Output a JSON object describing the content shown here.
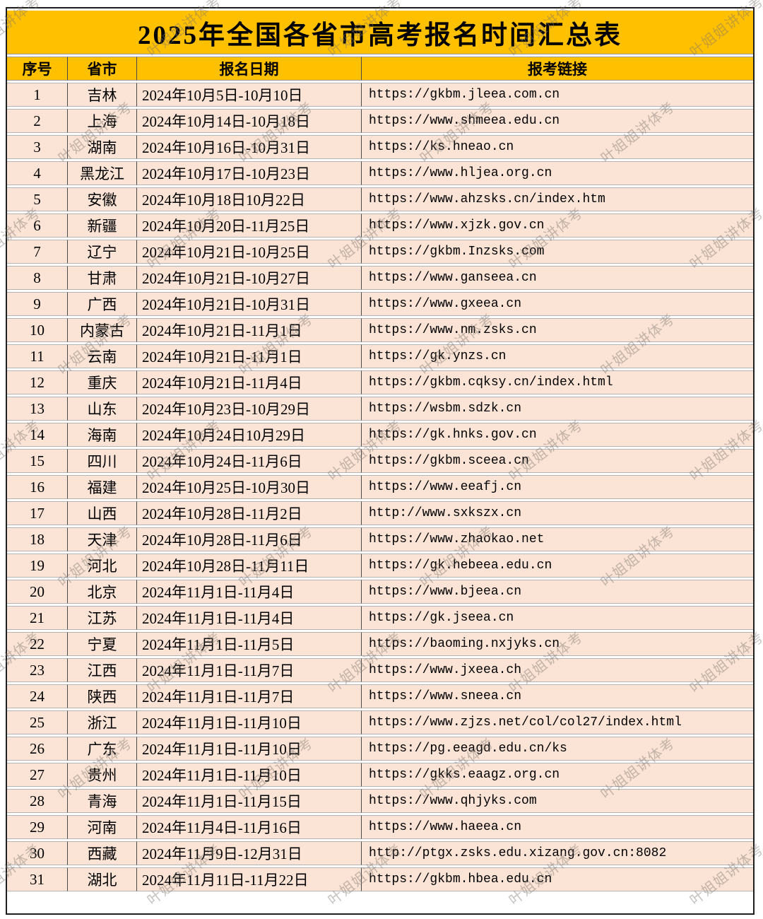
{
  "title": "2025年全国各省市高考报名时间汇总表",
  "watermark": {
    "text": "叶姐姐讲体考"
  },
  "colors": {
    "header_bg": "#FFC000",
    "row_bg": "#FBE4D5",
    "outer_border": "#1F1F1F",
    "column_line": "#4A4A4A",
    "row_line": "#B3B3B3",
    "text": "#000000",
    "watermark": "#80786F"
  },
  "table": {
    "headers": [
      "序号",
      "省市",
      "报名日期",
      "报考链接"
    ],
    "rows": [
      {
        "no": "1",
        "province": "吉林",
        "date": "2024年10月5日-10月10日",
        "link": "https://gkbm.jleea.com.cn"
      },
      {
        "no": "2",
        "province": "上海",
        "date": "2024年10月14日-10月18日",
        "link": "https://www.shmeea.edu.cn"
      },
      {
        "no": "3",
        "province": "湖南",
        "date": "2024年10月16日-10月31日",
        "link": "https://ks.hneao.cn"
      },
      {
        "no": "4",
        "province": "黑龙江",
        "date": "2024年10月17日-10月23日",
        "link": "https://www.hljea.org.cn"
      },
      {
        "no": "5",
        "province": "安徽",
        "date": "2024年10月18日10月22日",
        "link": "https://www.ahzsks.cn/index.htm"
      },
      {
        "no": "6",
        "province": "新疆",
        "date": "2024年10月20日-11月25日",
        "link": "https://www.xjzk.gov.cn"
      },
      {
        "no": "7",
        "province": "辽宁",
        "date": "2024年10月21日-10月25日",
        "link": "https://gkbm.Inzsks.com"
      },
      {
        "no": "8",
        "province": "甘肃",
        "date": "2024年10月21日-10月27日",
        "link": "https://www.ganseea.cn"
      },
      {
        "no": "9",
        "province": "广西",
        "date": "2024年10月21日-10月31日",
        "link": "https://www.gxeea.cn"
      },
      {
        "no": "10",
        "province": "内蒙古",
        "date": "2024年10月21日-11月1日",
        "link": "https://www.nm.zsks.cn"
      },
      {
        "no": "11",
        "province": "云南",
        "date": "2024年10月21日-11月1日",
        "link": "https://gk.ynzs.cn"
      },
      {
        "no": "12",
        "province": "重庆",
        "date": "2024年10月21日-11月4日",
        "link": "https://gkbm.cqksy.cn/index.html"
      },
      {
        "no": "13",
        "province": "山东",
        "date": "2024年10月23日-10月29日",
        "link": "https://wsbm.sdzk.cn"
      },
      {
        "no": "14",
        "province": "海南",
        "date": "2024年10月24日10月29日",
        "link": "https://gk.hnks.gov.cn"
      },
      {
        "no": "15",
        "province": "四川",
        "date": "2024年10月24日-11月6日",
        "link": "https://gkbm.sceea.cn"
      },
      {
        "no": "16",
        "province": "福建",
        "date": "2024年10月25日-10月30日",
        "link": "https://www.eeafj.cn"
      },
      {
        "no": "17",
        "province": "山西",
        "date": "2024年10月28日-11月2日",
        "link": "http://www.sxkszx.cn"
      },
      {
        "no": "18",
        "province": "天津",
        "date": "2024年10月28日-11月6日",
        "link": "https://www.zhaokao.net"
      },
      {
        "no": "19",
        "province": "河北",
        "date": "2024年10月28日-11月11日",
        "link": "https://gk.hebeea.edu.cn"
      },
      {
        "no": "20",
        "province": "北京",
        "date": "2024年11月1日-11月4日",
        "link": "https://www.bjeea.cn"
      },
      {
        "no": "21",
        "province": "江苏",
        "date": "2024年11月1日-11月4日",
        "link": "https://gk.jseea.cn"
      },
      {
        "no": "22",
        "province": "宁夏",
        "date": "2024年11月1日-11月5日",
        "link": "https://baoming.nxjyks.cn"
      },
      {
        "no": "23",
        "province": "江西",
        "date": "2024年11月1日-11月7日",
        "link": "https://www.jxeea.ch"
      },
      {
        "no": "24",
        "province": "陕西",
        "date": "2024年11月1日-11月7日",
        "link": "https://www.sneea.cn"
      },
      {
        "no": "25",
        "province": "浙江",
        "date": "2024年11月1日-11月10日",
        "link": "https://www.zjzs.net/col/col27/index.html"
      },
      {
        "no": "26",
        "province": "广东",
        "date": "2024年11月1日-11月10日",
        "link": "https://pg.eeagd.edu.cn/ks"
      },
      {
        "no": "27",
        "province": "贵州",
        "date": "2024年11月1日-11月10日",
        "link": "https://gkks.eaagz.org.cn"
      },
      {
        "no": "28",
        "province": "青海",
        "date": "2024年11月1日-11月15日",
        "link": "https://www.qhjyks.com"
      },
      {
        "no": "29",
        "province": "河南",
        "date": "2024年11月4日-11月16日",
        "link": "https://www.haeea.cn"
      },
      {
        "no": "30",
        "province": "西藏",
        "date": "2024年11月9日-12月31日",
        "link": "http://ptgx.zsks.edu.xizang.gov.cn:8082"
      },
      {
        "no": "31",
        "province": "湖北",
        "date": "2024年11月11日-11月22日",
        "link": "https://gkbm.hbea.edu.cn"
      }
    ]
  }
}
